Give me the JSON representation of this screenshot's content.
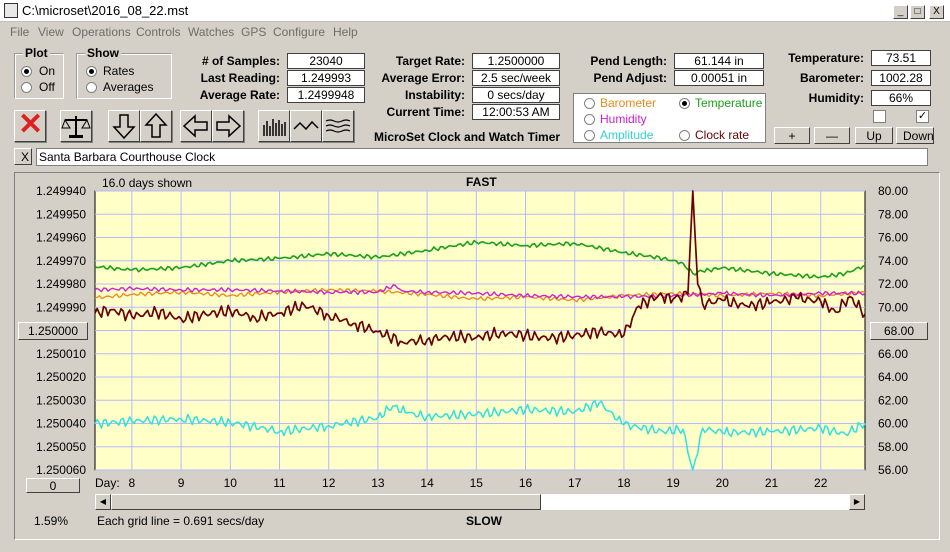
{
  "window": {
    "title": "C:\\microset\\2016_08_22.mst",
    "buttons": {
      "minimize": "_",
      "maximize": "□",
      "close": "X"
    }
  },
  "menu": [
    "File",
    "View",
    "Operations",
    "Controls",
    "Watches",
    "GPS",
    "Configure",
    "Help"
  ],
  "plot_group": {
    "title": "Plot",
    "on": "On",
    "off": "Off",
    "selected": "On"
  },
  "show_group": {
    "title": "Show",
    "rates": "Rates",
    "averages": "Averages",
    "selected": "Rates"
  },
  "stats": {
    "samples_label": "# of Samples:",
    "samples": "23040",
    "last_reading_label": "Last Reading:",
    "last_reading": "1.249993",
    "average_rate_label": "Average Rate:",
    "average_rate": "1.2499948",
    "target_rate_label": "Target Rate:",
    "target_rate": "1.2500000",
    "average_error_label": "Average Error:",
    "average_error": "2.5 sec/week",
    "instability_label": "Instability:",
    "instability": "0 secs/day",
    "current_time_label": "Current Time:",
    "current_time": "12:00:53 AM",
    "pend_length_label": "Pend Length:",
    "pend_length": "61.144 in",
    "pend_adjust_label": "Pend Adjust:",
    "pend_adjust": "0.00051 in",
    "temperature_label": "Temperature:",
    "temperature": "73.51",
    "barometer_label": "Barometer:",
    "barometer": "1002.28",
    "humidity_label": "Humidity:",
    "humidity": "66%"
  },
  "app_caption": "MicroSet Clock and Watch Timer",
  "plot_select": {
    "barometer": "Barometer",
    "temperature": "Temperature",
    "humidity": "Humidity",
    "amplitude": "Amplitude",
    "clock_rate": "Clock rate",
    "selected": "Temperature",
    "colors": {
      "barometer": "#e8881a",
      "temperature": "#1aa01a",
      "humidity": "#d020d0",
      "amplitude": "#30e0e0",
      "clock_rate": "#6a0000"
    }
  },
  "adjust_buttons": {
    "plus": "+",
    "minus": "—",
    "up": "Up",
    "down": "Down"
  },
  "checkboxes": {
    "left_checked": false,
    "right_checked": true,
    "check_mark": "✓"
  },
  "toolbar": {
    "icons": [
      "stop-icon",
      "scale-icon",
      "arrow-down-icon",
      "arrow-up-icon",
      "arrow-left-icon",
      "arrow-right-icon",
      "bars-icon",
      "wave-icon",
      "lines-icon"
    ],
    "stop_symbol": "✕"
  },
  "watch_name": {
    "close_label": "X",
    "value": "Santa Barbara Courthouse Clock"
  },
  "chart_data": {
    "type": "line",
    "days_shown": "16.0 days shown",
    "top_label": "FAST",
    "bottom_label": "SLOW",
    "grid_note": "Each grid line = 0.691 secs/day",
    "x_axis_label": "Day:",
    "xlim": [
      7.25,
      22.9
    ],
    "x_ticks": [
      8,
      9,
      10,
      11,
      12,
      13,
      14,
      15,
      16,
      17,
      18,
      19,
      20,
      21,
      22
    ],
    "left_axis": {
      "ticks": [
        "1.249940",
        "1.249950",
        "1.249960",
        "1.249970",
        "1.249980",
        "1.249990",
        "1.250000",
        "1.250010",
        "1.250020",
        "1.250030",
        "1.250040",
        "1.250050",
        "1.250060"
      ],
      "center_button": "1.250000",
      "range": [
        1.24994,
        1.25006
      ]
    },
    "right_axis": {
      "ticks": [
        "80.00",
        "78.00",
        "76.00",
        "74.00",
        "72.00",
        "70.00",
        "68.00",
        "66.00",
        "64.00",
        "62.00",
        "60.00",
        "58.00",
        "56.00"
      ],
      "center_button": "68.00",
      "range": [
        56,
        80
      ]
    },
    "bottom_left_button": "0",
    "percent": "1.59%",
    "background": "#ffffc8",
    "grid_color": "#b8b8ff",
    "series": [
      {
        "key": "temperature",
        "color": "#1aa01a",
        "width": 1.6,
        "x": [
          7.25,
          8,
          9,
          10,
          11,
          12,
          13,
          14,
          15,
          16,
          17,
          18,
          18.8,
          19.2,
          19.4,
          19.6,
          20,
          21,
          22,
          22.5,
          22.9
        ],
        "y": [
          73.5,
          73.2,
          73.4,
          74.0,
          74.2,
          74.6,
          74.3,
          74.9,
          75.6,
          75.3,
          75.5,
          74.7,
          74.2,
          73.8,
          72.9,
          73.1,
          73.4,
          72.9,
          72.6,
          72.9,
          73.6
        ]
      },
      {
        "key": "barometer",
        "color": "#e8881a",
        "width": 1.3,
        "x": [
          7.25,
          8,
          9,
          10,
          11,
          12,
          13,
          14,
          15,
          16,
          17,
          18,
          19,
          20,
          21,
          22,
          22.9
        ],
        "y": [
          70.8,
          71.1,
          71.3,
          71.0,
          71.3,
          71.5,
          71.4,
          71.1,
          70.7,
          70.9,
          70.6,
          71.0,
          71.2,
          71.0,
          71.2,
          71.0,
          71.3
        ]
      },
      {
        "key": "humidity",
        "color": "#d020d0",
        "width": 1.4,
        "x": [
          7.25,
          8,
          9,
          10,
          11,
          12,
          13,
          13.35,
          13.5,
          14,
          15,
          16,
          17,
          18,
          19,
          20,
          21,
          22,
          22.9
        ],
        "y": [
          71.5,
          71.6,
          71.5,
          71.5,
          71.4,
          71.3,
          71.3,
          71.9,
          71.4,
          71.3,
          71.2,
          71.0,
          70.9,
          70.9,
          71.0,
          71.2,
          71.0,
          71.2,
          71.2
        ]
      },
      {
        "key": "clock_rate",
        "color": "#6a0000",
        "width": 1.7,
        "x": [
          7.25,
          7.6,
          8,
          8.5,
          9,
          9.5,
          10,
          10.5,
          11,
          11.5,
          12,
          12.5,
          13,
          13.5,
          14,
          14.5,
          15,
          15.5,
          16,
          16.5,
          17,
          17.5,
          18,
          18.3,
          18.7,
          19,
          19.3,
          19.4,
          19.5,
          19.6,
          20,
          20.5,
          21,
          21.5,
          22,
          22.3,
          22.6,
          22.9
        ],
        "y": [
          69.5,
          69.8,
          69.2,
          69.6,
          69.0,
          69.4,
          69.7,
          69.1,
          69.5,
          70.2,
          69.3,
          68.6,
          67.9,
          67.0,
          67.2,
          67.5,
          67.4,
          67.8,
          67.6,
          67.3,
          67.6,
          67.9,
          67.6,
          70.1,
          71.0,
          70.7,
          71.1,
          80.0,
          72.0,
          70.3,
          70.6,
          70.1,
          70.4,
          70.8,
          70.5,
          69.6,
          70.9,
          69.4
        ]
      },
      {
        "key": "amplitude",
        "color": "#30e0e0",
        "width": 1.5,
        "x": [
          7.25,
          8,
          9,
          10,
          10.8,
          11,
          12,
          13,
          13.3,
          13.6,
          14,
          15,
          16,
          17,
          17.5,
          18,
          18.8,
          19.2,
          19.4,
          19.6,
          20,
          21,
          22,
          22.5,
          22.9
        ],
        "y": [
          60.0,
          60.2,
          60.4,
          60.1,
          59.5,
          59.3,
          59.8,
          60.5,
          61.5,
          60.9,
          60.6,
          60.8,
          61.2,
          61.0,
          61.8,
          59.9,
          59.3,
          59.5,
          56.0,
          59.6,
          59.2,
          59.3,
          59.6,
          59.1,
          60.0
        ]
      }
    ]
  }
}
